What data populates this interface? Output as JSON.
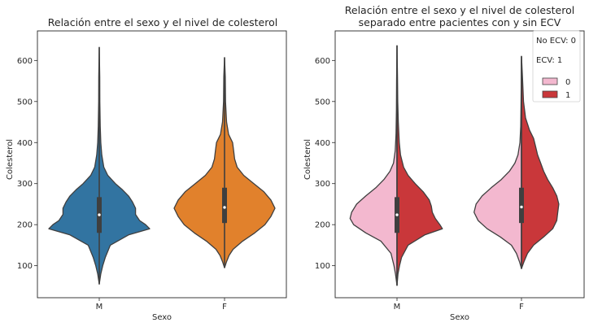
{
  "chart_data": [
    {
      "type": "violin",
      "title": "Relación entre el sexo y el nivel de colesterol",
      "xlabel": "Sexo",
      "ylabel": "Colesterol",
      "categories": [
        "M",
        "F"
      ],
      "ylim": [
        22,
        672
      ],
      "yticks": [
        "100",
        "200",
        "300",
        "400",
        "500",
        "600"
      ],
      "colors": [
        "#3274a1",
        "#e1812c"
      ],
      "violins": [
        {
          "category": "M",
          "min": 55,
          "max": 632,
          "q1": 180,
          "median": 224,
          "q3": 267,
          "profile": [
            [
              55,
              0.0
            ],
            [
              80,
              0.03
            ],
            [
              100,
              0.07
            ],
            [
              120,
              0.12
            ],
            [
              150,
              0.22
            ],
            [
              175,
              0.58
            ],
            [
              190,
              1.0
            ],
            [
              200,
              0.92
            ],
            [
              210,
              0.8
            ],
            [
              225,
              0.72
            ],
            [
              240,
              0.72
            ],
            [
              255,
              0.66
            ],
            [
              270,
              0.58
            ],
            [
              285,
              0.46
            ],
            [
              300,
              0.32
            ],
            [
              320,
              0.17
            ],
            [
              340,
              0.09
            ],
            [
              370,
              0.05
            ],
            [
              400,
              0.03
            ],
            [
              440,
              0.02
            ],
            [
              500,
              0.012
            ],
            [
              560,
              0.01
            ],
            [
              632,
              0.0
            ]
          ]
        },
        {
          "category": "F",
          "min": 95,
          "max": 607,
          "q1": 204,
          "median": 242,
          "q3": 290,
          "profile": [
            [
              95,
              0.0
            ],
            [
              110,
              0.04
            ],
            [
              125,
              0.09
            ],
            [
              140,
              0.17
            ],
            [
              160,
              0.36
            ],
            [
              180,
              0.6
            ],
            [
              200,
              0.8
            ],
            [
              220,
              0.92
            ],
            [
              240,
              1.0
            ],
            [
              260,
              0.92
            ],
            [
              280,
              0.78
            ],
            [
              300,
              0.58
            ],
            [
              320,
              0.38
            ],
            [
              340,
              0.25
            ],
            [
              360,
              0.2
            ],
            [
              380,
              0.18
            ],
            [
              400,
              0.16
            ],
            [
              420,
              0.08
            ],
            [
              450,
              0.04
            ],
            [
              500,
              0.02
            ],
            [
              560,
              0.014
            ],
            [
              607,
              0.0
            ]
          ]
        }
      ]
    },
    {
      "type": "split-violin",
      "title_lines": [
        "Relación entre el sexo y el nivel de colesterol",
        "separado entre pacientes con y sin ECV"
      ],
      "xlabel": "Sexo",
      "ylabel": "Colesterol",
      "categories": [
        "M",
        "F"
      ],
      "ylim": [
        22,
        672
      ],
      "yticks": [
        "100",
        "200",
        "300",
        "400",
        "500",
        "600"
      ],
      "hue_colors": [
        "#f3b8cf",
        "#c9373a"
      ],
      "legend_position": "top-right",
      "legend_text": [
        "No ECV: 0",
        "ECV: 1"
      ],
      "legend_entries": [
        "0",
        "1"
      ],
      "violins": [
        {
          "category": "M",
          "min": 52,
          "max": 636,
          "q1": 180,
          "median": 224,
          "q3": 267,
          "left": [
            [
              52,
              0.0
            ],
            [
              80,
              0.03
            ],
            [
              100,
              0.06
            ],
            [
              130,
              0.12
            ],
            [
              160,
              0.32
            ],
            [
              180,
              0.62
            ],
            [
              200,
              0.86
            ],
            [
              215,
              0.93
            ],
            [
              230,
              0.9
            ],
            [
              250,
              0.8
            ],
            [
              270,
              0.62
            ],
            [
              290,
              0.42
            ],
            [
              310,
              0.26
            ],
            [
              330,
              0.14
            ],
            [
              350,
              0.07
            ],
            [
              380,
              0.035
            ],
            [
              420,
              0.02
            ],
            [
              480,
              0.012
            ],
            [
              550,
              0.008
            ],
            [
              636,
              0.0
            ]
          ],
          "right": [
            [
              52,
              0.0
            ],
            [
              80,
              0.02
            ],
            [
              100,
              0.05
            ],
            [
              120,
              0.09
            ],
            [
              150,
              0.22
            ],
            [
              175,
              0.55
            ],
            [
              190,
              0.9
            ],
            [
              200,
              0.85
            ],
            [
              215,
              0.76
            ],
            [
              230,
              0.7
            ],
            [
              245,
              0.68
            ],
            [
              260,
              0.64
            ],
            [
              280,
              0.52
            ],
            [
              300,
              0.36
            ],
            [
              320,
              0.22
            ],
            [
              340,
              0.13
            ],
            [
              370,
              0.07
            ],
            [
              400,
              0.045
            ],
            [
              450,
              0.025
            ],
            [
              500,
              0.015
            ],
            [
              560,
              0.01
            ],
            [
              636,
              0.0
            ]
          ]
        },
        {
          "category": "F",
          "min": 93,
          "max": 610,
          "q1": 204,
          "median": 243,
          "q3": 290,
          "left": [
            [
              93,
              0.0
            ],
            [
              110,
              0.04
            ],
            [
              130,
              0.1
            ],
            [
              150,
              0.2
            ],
            [
              170,
              0.42
            ],
            [
              190,
              0.68
            ],
            [
              210,
              0.86
            ],
            [
              230,
              0.94
            ],
            [
              250,
              0.9
            ],
            [
              270,
              0.78
            ],
            [
              290,
              0.6
            ],
            [
              310,
              0.4
            ],
            [
              330,
              0.24
            ],
            [
              350,
              0.13
            ],
            [
              370,
              0.07
            ],
            [
              400,
              0.03
            ],
            [
              440,
              0.015
            ],
            [
              500,
              0.008
            ],
            [
              560,
              0.004
            ],
            [
              610,
              0.0
            ]
          ],
          "right": [
            [
              93,
              0.0
            ],
            [
              110,
              0.05
            ],
            [
              130,
              0.12
            ],
            [
              150,
              0.24
            ],
            [
              170,
              0.44
            ],
            [
              190,
              0.62
            ],
            [
              210,
              0.7
            ],
            [
              230,
              0.72
            ],
            [
              250,
              0.74
            ],
            [
              270,
              0.7
            ],
            [
              290,
              0.62
            ],
            [
              310,
              0.52
            ],
            [
              330,
              0.44
            ],
            [
              350,
              0.38
            ],
            [
              370,
              0.32
            ],
            [
              390,
              0.28
            ],
            [
              410,
              0.24
            ],
            [
              430,
              0.16
            ],
            [
              460,
              0.08
            ],
            [
              500,
              0.04
            ],
            [
              560,
              0.02
            ],
            [
              610,
              0.0
            ]
          ]
        }
      ]
    }
  ]
}
